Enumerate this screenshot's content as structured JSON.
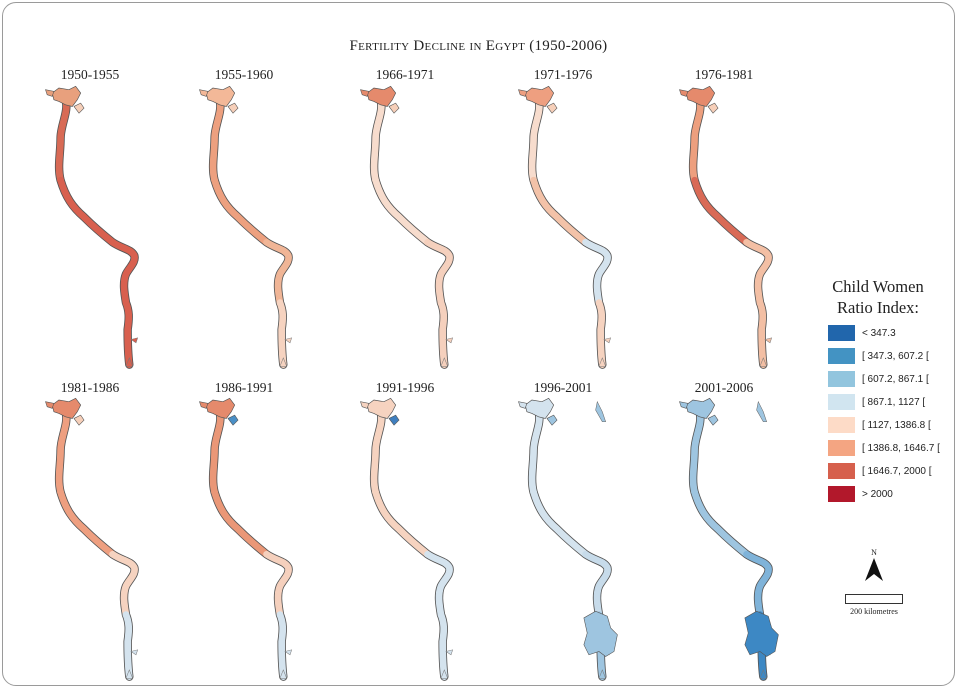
{
  "title": "Fertility Decline in Egypt (1950-2006)",
  "panels": [
    {
      "period": "1950-1955",
      "colors": {
        "delta": "#e8a07d",
        "north": "#d86a55",
        "mid": "#d8604f",
        "south": "#d8604f",
        "tip": "#d8604f",
        "extra": "#d8604f",
        "lake": "#f6cfb9"
      }
    },
    {
      "period": "1955-1960",
      "colors": {
        "delta": "#f3b898",
        "north": "#eda07f",
        "mid": "#eda07f",
        "south": "#f0b596",
        "tip": "#f6d3c0",
        "extra": "#f3b898",
        "lake": "#f6cfb9"
      }
    },
    {
      "period": "1966-1971",
      "colors": {
        "delta": "#e58a6c",
        "north": "#f7dccd",
        "mid": "#f7dccd",
        "south": "#f5d0bd",
        "tip": "#f5d0bd",
        "extra": "#f7dccd",
        "lake": "#f6cfb9"
      }
    },
    {
      "period": "1971-1976",
      "colors": {
        "delta": "#ee9f80",
        "north": "#f7dccd",
        "mid": "#f3c2a8",
        "south": "#d4e3ee",
        "tip": "#f6d3c0",
        "extra": "#f7dccd",
        "lake": "#f6cfb9"
      }
    },
    {
      "period": "1976-1981",
      "colors": {
        "delta": "#e58a6c",
        "north": "#ed9f7e",
        "mid": "#d96a56",
        "south": "#f3bfa4",
        "tip": "#f3bfa4",
        "extra": "#f3b898",
        "lake": "#f6cfb9"
      }
    },
    {
      "period": "1981-1986",
      "colors": {
        "delta": "#e58a6c",
        "north": "#ee9f80",
        "mid": "#ee9f80",
        "south": "#f6d3c0",
        "tip": "#d4e3ee",
        "extra": "#f3b898",
        "lake": "#f6cfb9"
      }
    },
    {
      "period": "1986-1991",
      "colors": {
        "delta": "#e58a6c",
        "north": "#ea9777",
        "mid": "#ea9777",
        "south": "#f5d0bd",
        "tip": "#d4e3ee",
        "extra": "#f3b898",
        "lake": "#4a8fc6"
      }
    },
    {
      "period": "1991-1996",
      "colors": {
        "delta": "#f6d3c0",
        "north": "#f6d3c0",
        "mid": "#f6d3c0",
        "south": "#d4e3ee",
        "tip": "#d4e3ee",
        "extra": "#f6d3c0",
        "lake": "#3f7fbf"
      }
    },
    {
      "period": "1996-2001",
      "colors": {
        "delta": "#d4e3ee",
        "north": "#d4e3ee",
        "mid": "#d4e3ee",
        "south": "#c7dbea",
        "tip": "#9ec5e0",
        "extra": "#9ec5e0",
        "lake": "#9ec5e0"
      }
    },
    {
      "period": "2001-2006",
      "colors": {
        "delta": "#9ec5e0",
        "north": "#9ec5e0",
        "mid": "#9ec5e0",
        "south": "#7fb3d9",
        "tip": "#3d88c4",
        "extra": "#9ec5e0",
        "lake": "#9ec5e0"
      }
    }
  ],
  "legend": {
    "title_line1": "Child Women",
    "title_line2": "Ratio Index:",
    "items": [
      {
        "label": "< 347.3",
        "color": "#2166ac"
      },
      {
        "label": "[ 347.3, 607.2 [",
        "color": "#4393c3"
      },
      {
        "label": "[ 607.2, 867.1 [",
        "color": "#92c5de"
      },
      {
        "label": "[ 867.1, 1127 [",
        "color": "#d1e5f0"
      },
      {
        "label": "[ 1127, 1386.8 [",
        "color": "#fddbc7"
      },
      {
        "label": "[ 1386.8, 1646.7 [",
        "color": "#f4a582"
      },
      {
        "label": "[ 1646.7, 2000 [",
        "color": "#d6604d"
      },
      {
        "label": "> 2000",
        "color": "#b2182b"
      }
    ]
  },
  "north_label": "N",
  "scale_label": "200 kilometres"
}
